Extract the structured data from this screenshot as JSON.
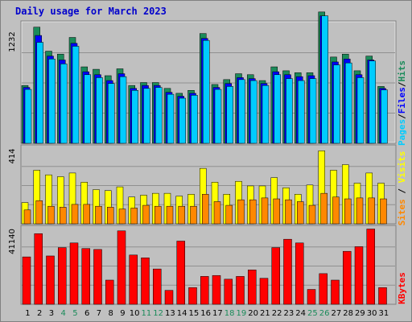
{
  "title": "Daily usage for March 2023",
  "colors": {
    "hits": "#1b8b5a",
    "files": "#0000ff",
    "pages": "#00ccff",
    "visits": "#ffff00",
    "sites": "#ff8800",
    "kbytes": "#ff0000",
    "separator": "#000000"
  },
  "chart_data": [
    {
      "type": "bar",
      "panel": "hits-files-pages",
      "categories": [
        "1",
        "2",
        "3",
        "4",
        "5",
        "6",
        "7",
        "8",
        "9",
        "10",
        "11",
        "12",
        "13",
        "14",
        "15",
        "16",
        "17",
        "18",
        "19",
        "20",
        "21",
        "22",
        "23",
        "24",
        "25",
        "26",
        "27",
        "28",
        "29",
        "30",
        "31"
      ],
      "weekend_days": [
        "4",
        "5",
        "11",
        "12",
        "18",
        "19",
        "25",
        "26"
      ],
      "ytick": "1232",
      "ymax": 1232,
      "series": [
        {
          "name": "Hits",
          "values": [
            590,
            1185,
            940,
            910,
            1080,
            780,
            755,
            690,
            760,
            590,
            620,
            620,
            560,
            510,
            540,
            1120,
            600,
            650,
            710,
            700,
            640,
            780,
            740,
            720,
            720,
            1340,
            880,
            910,
            740,
            890,
            580
          ]
        },
        {
          "name": "Files",
          "values": [
            570,
            1100,
            890,
            850,
            1020,
            730,
            700,
            640,
            710,
            560,
            590,
            590,
            520,
            480,
            510,
            1070,
            570,
            610,
            670,
            660,
            610,
            730,
            700,
            680,
            690,
            1300,
            830,
            860,
            700,
            850,
            560
          ]
        },
        {
          "name": "Pages",
          "values": [
            550,
            1030,
            860,
            810,
            990,
            700,
            670,
            610,
            680,
            540,
            560,
            570,
            500,
            460,
            490,
            1050,
            550,
            580,
            650,
            640,
            590,
            700,
            660,
            640,
            660,
            1300,
            800,
            820,
            670,
            840,
            545
          ]
        }
      ],
      "legend": [
        "Pages",
        "Files",
        "Hits"
      ]
    },
    {
      "type": "bar",
      "panel": "visits-sites",
      "categories": [
        "1",
        "2",
        "3",
        "4",
        "5",
        "6",
        "7",
        "8",
        "9",
        "10",
        "11",
        "12",
        "13",
        "14",
        "15",
        "16",
        "17",
        "18",
        "19",
        "20",
        "21",
        "22",
        "23",
        "24",
        "25",
        "26",
        "27",
        "28",
        "29",
        "30",
        "31"
      ],
      "ytick": "414",
      "ymax": 414,
      "series": [
        {
          "name": "Visits",
          "values": [
            115,
            290,
            265,
            255,
            275,
            225,
            185,
            180,
            200,
            145,
            155,
            165,
            165,
            150,
            160,
            300,
            225,
            160,
            230,
            205,
            205,
            250,
            195,
            160,
            210,
            395,
            290,
            320,
            220,
            275,
            220
          ]
        },
        {
          "name": "Sites",
          "values": [
            75,
            125,
            95,
            90,
            105,
            105,
            95,
            90,
            80,
            85,
            100,
            95,
            95,
            95,
            95,
            160,
            120,
            100,
            130,
            130,
            140,
            135,
            130,
            120,
            100,
            165,
            145,
            135,
            140,
            140,
            135
          ]
        }
      ],
      "legend": [
        "Sites",
        "Visits"
      ]
    },
    {
      "type": "bar",
      "panel": "kbytes",
      "categories": [
        "1",
        "2",
        "3",
        "4",
        "5",
        "6",
        "7",
        "8",
        "9",
        "10",
        "11",
        "12",
        "13",
        "14",
        "15",
        "16",
        "17",
        "18",
        "19",
        "20",
        "21",
        "22",
        "23",
        "24",
        "25",
        "26",
        "27",
        "28",
        "29",
        "30",
        "31"
      ],
      "ytick": "41140",
      "ymax": 41140,
      "series": [
        {
          "name": "KBytes",
          "values": [
            25500,
            38000,
            26000,
            30500,
            33000,
            30000,
            29500,
            13000,
            39500,
            26500,
            25000,
            19000,
            7500,
            34000,
            9000,
            15000,
            15500,
            13500,
            15000,
            18500,
            14000,
            30500,
            35000,
            33000,
            8000,
            16500,
            13000,
            28500,
            31000,
            40500,
            9000
          ]
        }
      ],
      "legend": [
        "KBytes"
      ]
    }
  ]
}
